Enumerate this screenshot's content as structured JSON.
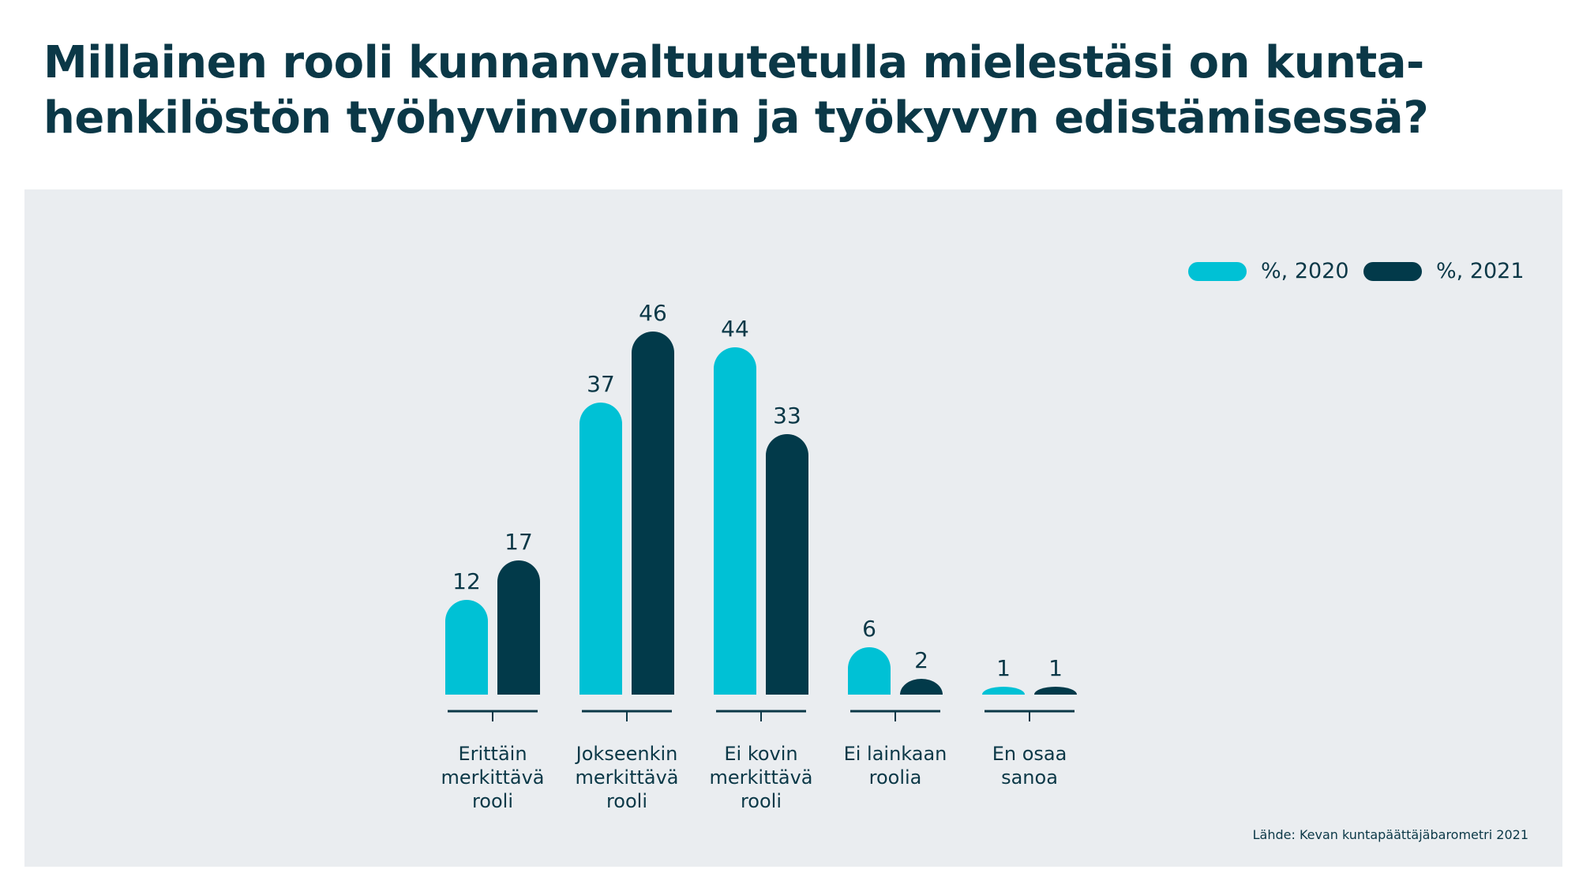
{
  "title_line1": "Millainen rooli kunnanvaltuutetulla mielestäsi on kunta-",
  "title_line2": "henkilöstön työhyvinvoinnin ja työkyvyn edistämisessä?",
  "source": "Lähde: Kevan kuntapäättäjäbarometri 2021",
  "colors": {
    "background": "#eaedf0",
    "series_2020": "#00c1d5",
    "series_2021": "#023a4a",
    "text": "#0b3847"
  },
  "chart_data": {
    "type": "bar",
    "title": "Millainen rooli kunnanvaltuutetulla mielestäsi on kunta-henkilöstön työhyvinvoinnin ja työkyvyn edistämisessä?",
    "categories": [
      [
        "Erittäin",
        "merkittävä",
        "rooli"
      ],
      [
        "Jokseenkin",
        "merkittävä",
        "rooli"
      ],
      [
        "Ei kovin",
        "merkittävä",
        "rooli"
      ],
      [
        "Ei lainkaan",
        "roolia"
      ],
      [
        "En osaa",
        "sanoa"
      ]
    ],
    "series": [
      {
        "name": "%, 2020",
        "values": [
          12,
          37,
          44,
          6,
          1
        ],
        "color": "#00c1d5"
      },
      {
        "name": "%, 2021",
        "values": [
          17,
          46,
          33,
          2,
          1
        ],
        "color": "#023a4a"
      }
    ],
    "ylim": [
      0,
      50
    ],
    "grid": false,
    "legend_position": "top-right",
    "data_labels": true
  }
}
